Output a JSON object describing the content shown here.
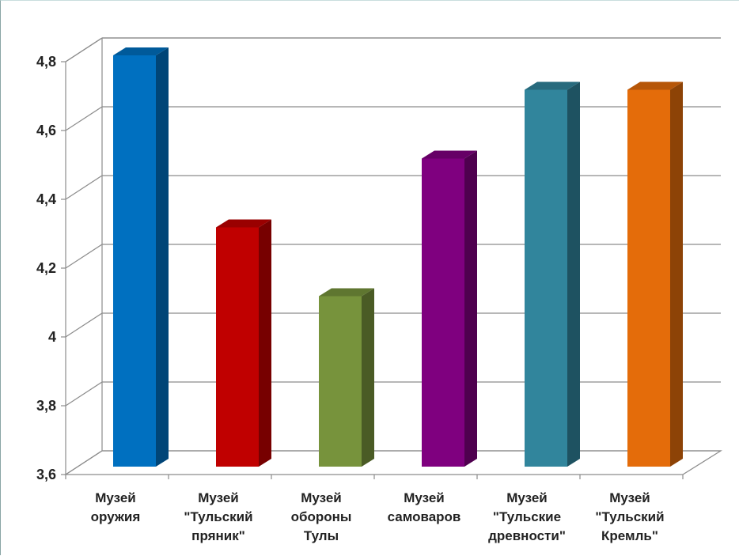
{
  "chart_data": {
    "type": "bar",
    "style": "3d-column",
    "title": "",
    "xlabel": "",
    "ylabel": "",
    "ylim": [
      3.6,
      4.8
    ],
    "yticks": [
      "3,6",
      "3,8",
      "4",
      "4,2",
      "4,4",
      "4,6",
      "4,8"
    ],
    "ytick_values": [
      3.6,
      3.8,
      4.0,
      4.2,
      4.4,
      4.6,
      4.8
    ],
    "grid": true,
    "legend": "none",
    "categories": [
      [
        "Музей",
        "оружия"
      ],
      [
        "Музей",
        "\"Тульский",
        "пряник\""
      ],
      [
        "Музей",
        "обороны",
        "Тулы"
      ],
      [
        "Музей",
        "самоваров"
      ],
      [
        "Музей",
        "\"Тульские",
        "древности\""
      ],
      [
        "Музей",
        "\"Тульский",
        "Кремль\""
      ]
    ],
    "values": [
      4.8,
      4.3,
      4.1,
      4.5,
      4.7,
      4.7
    ],
    "colors": [
      "#0070c0",
      "#c00000",
      "#77933c",
      "#7f007f",
      "#31859c",
      "#e46c0a"
    ]
  }
}
